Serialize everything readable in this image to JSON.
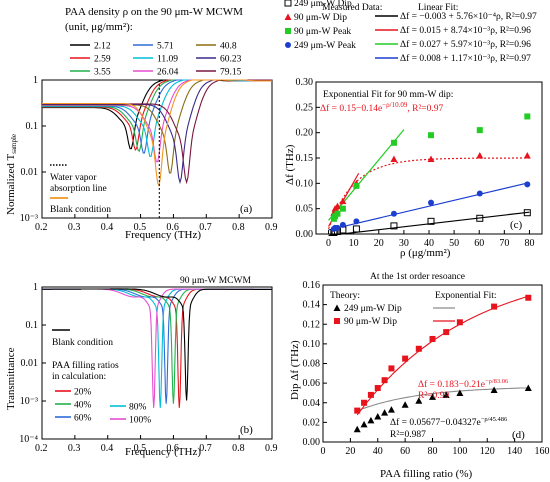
{
  "chart_data": [
    {
      "id": "a",
      "type": "line",
      "panel_label": "(a)",
      "legend_title_1": "PAA density ρ on the 90 μm-W MCWM",
      "legend_title_2": "(unit, μg/mm²):",
      "xlabel": "Frequency (THz)",
      "ylabel": "Normalized T",
      "ylabel_sub": "sample",
      "xlim": [
        0.2,
        0.9
      ],
      "ylim": [
        0.001,
        1
      ],
      "yscale": "log",
      "x_ticks": [
        "0.2",
        "0.3",
        "0.4",
        "0.5",
        "0.6",
        "0.7",
        "0.8",
        "0.9"
      ],
      "y_ticks": [
        "1",
        "0.1",
        "0.01",
        "10⁻³"
      ],
      "water_line_x": 0.557,
      "water_label_1": "Water vapor",
      "water_label_2": "absorption line",
      "blank_label": "Blank condition",
      "series": [
        {
          "name": "2.12",
          "color": "#000000",
          "dip_f": 0.47,
          "dip_t": 0.031
        },
        {
          "name": "2.59",
          "color": "#e8141d",
          "dip_f": 0.485,
          "dip_t": 0.03
        },
        {
          "name": "3.55",
          "color": "#22b14c",
          "dip_f": 0.495,
          "dip_t": 0.028
        },
        {
          "name": "5.71",
          "color": "#2f6bd8",
          "dip_f": 0.51,
          "dip_t": 0.025
        },
        {
          "name": "11.09",
          "color": "#00bfd6",
          "dip_f": 0.53,
          "dip_t": 0.021
        },
        {
          "name": "26.04",
          "color": "#e64fd0",
          "dip_f": 0.55,
          "dip_t": 0.016
        },
        {
          "name": "40.8",
          "color": "#8b6d12",
          "dip_f": 0.59,
          "dip_t": 0.009
        },
        {
          "name": "60.23",
          "color": "#3a2a8c",
          "dip_f": 0.62,
          "dip_t": 0.006
        },
        {
          "name": "79.15",
          "color": "#7a1640",
          "dip_f": 0.64,
          "dip_t": 0.006
        }
      ],
      "blank": {
        "color": "#f39423",
        "dip_f": 0.555,
        "dip_t": 0.005
      }
    },
    {
      "id": "b",
      "type": "line",
      "panel_label": "(b)",
      "title": "90 μm-W MCWM",
      "xlabel": "Frequency (THz)",
      "ylabel": "Transmittance",
      "xlim": [
        0.2,
        0.9
      ],
      "ylim": [
        0.0001,
        1
      ],
      "yscale": "log",
      "x_ticks": [
        "0.2",
        "0.3",
        "0.4",
        "0.5",
        "0.6",
        "0.7",
        "0.8",
        "0.9"
      ],
      "y_ticks": [
        "1",
        "0.1",
        "0.01",
        "10⁻³",
        "10⁻⁴"
      ],
      "blank_label": "Blank condition",
      "legend_title_1": "PAA filling ratios",
      "legend_title_2": "in calculation:",
      "series": [
        {
          "name": "20%",
          "color": "#e8141d",
          "dip_f": 0.618,
          "dip_t": 0.0003
        },
        {
          "name": "40%",
          "color": "#22b14c",
          "dip_f": 0.6,
          "dip_t": 0.0004
        },
        {
          "name": "60%",
          "color": "#2f6bd8",
          "dip_f": 0.578,
          "dip_t": 0.0004
        },
        {
          "name": "80%",
          "color": "#00bfd6",
          "dip_f": 0.56,
          "dip_t": 0.0003
        },
        {
          "name": "100%",
          "color": "#e64fd0",
          "dip_f": 0.54,
          "dip_t": 0.0003
        }
      ],
      "blank": {
        "color": "#000000",
        "dip_f": 0.64,
        "dip_t": 0.0005
      }
    },
    {
      "id": "c",
      "type": "scatter",
      "panel_label": "(c)",
      "xlabel": "ρ (μg/mm²)",
      "ylabel": "Δf (THz)",
      "xlim": [
        -5,
        85
      ],
      "ylim": [
        0,
        0.3
      ],
      "x_ticks": [
        "0",
        "10",
        "20",
        "30",
        "40",
        "50",
        "60",
        "70",
        "80"
      ],
      "y_ticks": [
        "0.00",
        "0.05",
        "0.10",
        "0.15",
        "0.20",
        "0.25",
        "0.30"
      ],
      "legend_header_measured": "Measured Data:",
      "legend_header_fit": "Linear Fit:",
      "fit_note": "Exponential Fit for 90 mm-W dip:",
      "fit_eq": "Δf = 0.15−0.14e",
      "fit_exp": "−ρ/10.09",
      "fit_r2": ", R²=0.97",
      "x_values": [
        2.12,
        2.59,
        3.55,
        5.71,
        11.09,
        26.04,
        40.8,
        60.23,
        79.15
      ],
      "series": [
        {
          "name": "249 μm-W Dip",
          "color": "#000000",
          "marker": "square-open",
          "y": [
            0.003,
            0.005,
            0.005,
            0.008,
            0.01,
            0.016,
            0.025,
            0.031,
            0.042
          ],
          "fit": "Δf = −0.003 + 5.76×10⁻⁴ρ, R²=0.97",
          "fit_a": -0.003,
          "fit_b": 0.000576
        },
        {
          "name": "90 μm-W Dip",
          "color": "#e8141d",
          "marker": "triangle",
          "y": [
            0.042,
            0.05,
            0.055,
            0.065,
            0.1,
            0.148,
            0.148,
            0.155,
            0.155
          ],
          "fit": "Δf = 0.015 + 8.74×10⁻³ρ, R²=0.96",
          "fit_a": 0.015,
          "fit_b": 0.00874
        },
        {
          "name": "90 μm-W Peak",
          "color": "#22cc22",
          "marker": "square",
          "y": [
            0.03,
            0.035,
            0.04,
            0.05,
            0.095,
            0.18,
            0.195,
            0.205,
            0.232
          ],
          "fit": "Δf = 0.027 + 5.97×10⁻³ρ, R²=0.96",
          "fit_a": 0.027,
          "fit_b": 0.00597
        },
        {
          "name": "249 μm-W Peak",
          "color": "#1d3fcf",
          "marker": "circle",
          "y": [
            0.01,
            0.012,
            0.012,
            0.018,
            0.025,
            0.04,
            0.062,
            0.08,
            0.098
          ],
          "fit": "Δf = 0.008 + 1.17×10⁻³ρ, R²=0.97",
          "fit_a": 0.008,
          "fit_b": 0.00117
        }
      ]
    },
    {
      "id": "d",
      "type": "scatter",
      "panel_label": "(d)",
      "title": "At the 1st order resoance",
      "xlabel": "PAA filling ratio (%)",
      "ylabel": "Dip Δf (THz)",
      "xlim": [
        0,
        160
      ],
      "ylim": [
        0,
        0.16
      ],
      "x_ticks": [
        "0",
        "20",
        "40",
        "60",
        "80",
        "100",
        "120",
        "140",
        "160"
      ],
      "y_ticks": [
        "0.00",
        "0.02",
        "0.04",
        "0.06",
        "0.08",
        "0.10",
        "0.12",
        "0.14",
        "0.16"
      ],
      "legend_theory": "Theory:",
      "legend_fit": "Exponential Fit:",
      "x_values": [
        25,
        30,
        35,
        40,
        45,
        50,
        60,
        70,
        80,
        90,
        100,
        125,
        150
      ],
      "series": [
        {
          "name": "249 μm-W Dip",
          "color": "#000000",
          "marker": "triangle",
          "y": [
            0.013,
            0.018,
            0.022,
            0.026,
            0.03,
            0.033,
            0.038,
            0.042,
            0.046,
            0.048,
            0.05,
            0.053,
            0.055
          ],
          "fit_a": 0.05677,
          "fit_b": 0.04327,
          "fit_tau": 45.486,
          "fit_color": "#8c8c8c",
          "fit_eq": "Δf = 0.05677−0.04327e",
          "fit_exp": "−ρ/45.486",
          "fit_r2": "R²=0.987"
        },
        {
          "name": "90 μm-W Dip",
          "color": "#e8141d",
          "marker": "square",
          "y": [
            0.032,
            0.04,
            0.048,
            0.055,
            0.063,
            0.075,
            0.085,
            0.095,
            0.105,
            0.112,
            0.122,
            0.138,
            0.147
          ],
          "fit_a": 0.183,
          "fit_b": 0.21,
          "fit_tau": 83.06,
          "fit_color": "#e8141d",
          "fit_eq": "Δf = 0.183−0.21e",
          "fit_exp": "−ρ/83.06",
          "fit_r2": "R²=0.99"
        }
      ]
    }
  ]
}
